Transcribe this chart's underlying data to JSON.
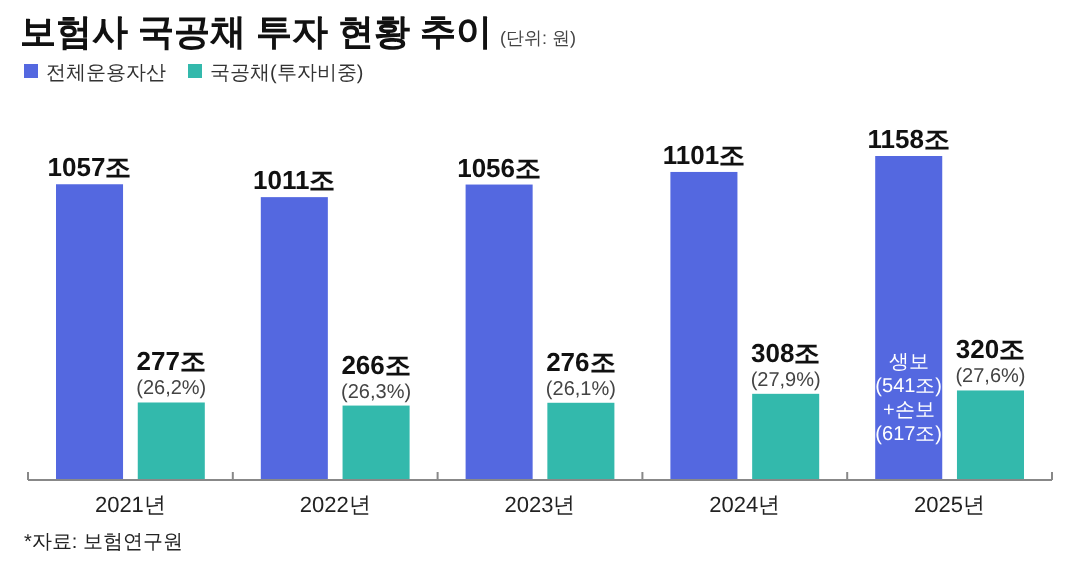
{
  "chart_data": {
    "type": "bar",
    "title": "보험사 국공채 투자 현황 추이",
    "subtitle": "(단위: 원)",
    "categories": [
      "2021년",
      "2022년",
      "2023년",
      "2024년",
      "2025년"
    ],
    "series": [
      {
        "name": "전체운용자산",
        "color": "#5468e0",
        "values": [
          1057,
          1011,
          1056,
          1101,
          1158
        ],
        "value_labels": [
          "1057조",
          "1011조",
          "1056조",
          "1101조",
          "1158조"
        ]
      },
      {
        "name": "국공채(투자비중)",
        "color": "#33b9ac",
        "values": [
          277,
          266,
          276,
          308,
          320
        ],
        "value_labels": [
          "277조\n(26,2%)",
          "266조\n(26,3%)",
          "276조\n(26,1%)",
          "308조\n(27,9%)",
          "320조\n(27,6%)"
        ]
      }
    ],
    "legend": "top left",
    "annotations": [
      "생보\n(541조)\n+손보\n(617조)",
      "*자료: 보험연구원"
    ]
  }
}
